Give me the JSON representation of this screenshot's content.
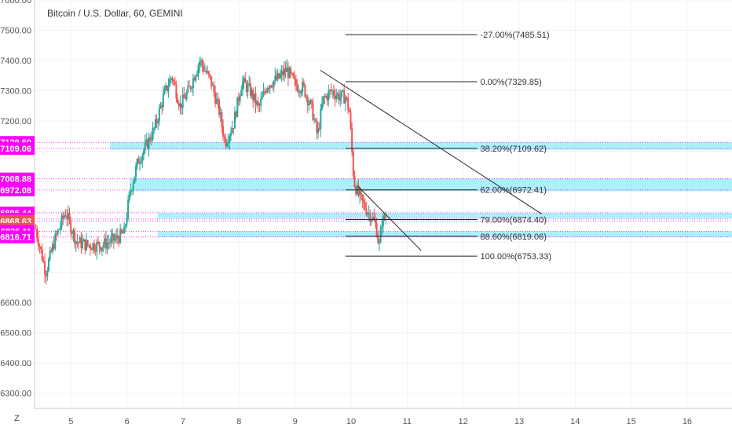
{
  "title": "Bitcoin / U.S. Dollar, 60, GEMINI",
  "corner_label": "Z",
  "colors": {
    "up": "#26a69a",
    "down": "#ef5350",
    "zone": "#88eafa",
    "tag_magenta": "#ff00ff",
    "tag_red": "#ef5350",
    "line": "#222222"
  },
  "chart_data": {
    "type": "candlestick",
    "ylim": [
      6250,
      7600
    ],
    "xlim": [
      4.35,
      16.8
    ],
    "y_ticks": [
      7600,
      7500,
      7400,
      7300,
      7200,
      7100,
      7000,
      6900,
      6800,
      6700,
      6600,
      6500,
      6400,
      6300
    ],
    "y_tick_labels": [
      "7600.00",
      "7500.00",
      "7400.00",
      "7300.00",
      "7200.00",
      "",
      "",
      "",
      "",
      "",
      "6600.00",
      "6500.00",
      "6400.00",
      "6300.00"
    ],
    "x_ticks": [
      5,
      6,
      7,
      8,
      9,
      10,
      11,
      12,
      13,
      14,
      15,
      16
    ],
    "x_tick_labels": [
      "5",
      "6",
      "7",
      "8",
      "9",
      "10",
      "11",
      "12",
      "13",
      "14",
      "15",
      "16"
    ],
    "price_tags": [
      {
        "value": 7129.5,
        "label": "7129.50",
        "color": "magenta"
      },
      {
        "value": 7109.06,
        "label": "7109.06",
        "color": "magenta"
      },
      {
        "value": 7008.88,
        "label": "7008.88",
        "color": "magenta"
      },
      {
        "value": 6972.08,
        "label": "6972.08",
        "color": "magenta"
      },
      {
        "value": 6896.44,
        "label": "6896.44",
        "color": "magenta"
      },
      {
        "value": 6876.0,
        "label": "6876.00",
        "color": "magenta"
      },
      {
        "value": 6868.63,
        "label": "6868.63",
        "color": "red"
      },
      {
        "value": 6842.0,
        "label": "39:32",
        "color": "red"
      },
      {
        "value": 6835.11,
        "label": "6835.11",
        "color": "magenta"
      },
      {
        "value": 6816.71,
        "label": "6816.71",
        "color": "magenta"
      }
    ],
    "fib_levels": [
      {
        "value": 7485.51,
        "label": "-27.00%(7485.51)"
      },
      {
        "value": 7329.85,
        "label": "0.00%(7329.85)"
      },
      {
        "value": 7109.62,
        "label": "38.20%(7109.62)"
      },
      {
        "value": 6972.41,
        "label": "62.00%(6972.41)"
      },
      {
        "value": 6874.4,
        "label": "79.00%(6874.40)"
      },
      {
        "value": 6819.06,
        "label": "88.60%(6819.06)"
      },
      {
        "value": 6753.33,
        "label": "100.00%(6753.33)"
      }
    ],
    "fib_x_range": [
      9.9,
      12.25
    ],
    "zones": [
      {
        "x0": 5.7,
        "y0": 7105,
        "y1": 7130
      },
      {
        "x0": 6.05,
        "y0": 6968,
        "y1": 7010
      },
      {
        "x0": 6.55,
        "y0": 6878,
        "y1": 6896
      },
      {
        "x0": 6.55,
        "y0": 6816,
        "y1": 6836
      }
    ],
    "dotted_levels": [
      7129.5,
      7109.06,
      7008.88,
      6972.08,
      6896.44,
      6876.0,
      6868.63,
      6835.11,
      6816.71
    ],
    "trendlines": [
      {
        "x0": 9.45,
        "y0": 7368,
        "x1": 13.4,
        "y1": 6893
      },
      {
        "x0": 10.12,
        "y0": 6985,
        "x1": 11.25,
        "y1": 6772
      }
    ],
    "candle_path": [
      [
        4.35,
        6860
      ],
      [
        4.55,
        6700
      ],
      [
        4.7,
        6800
      ],
      [
        4.9,
        6900
      ],
      [
        5.1,
        6800
      ],
      [
        5.3,
        6790
      ],
      [
        5.55,
        6790
      ],
      [
        5.8,
        6810
      ],
      [
        5.95,
        6830
      ],
      [
        6.05,
        6960
      ],
      [
        6.2,
        7070
      ],
      [
        6.35,
        7120
      ],
      [
        6.5,
        7180
      ],
      [
        6.65,
        7280
      ],
      [
        6.8,
        7350
      ],
      [
        6.95,
        7250
      ],
      [
        7.1,
        7300
      ],
      [
        7.3,
        7400
      ],
      [
        7.5,
        7330
      ],
      [
        7.65,
        7230
      ],
      [
        7.75,
        7130
      ],
      [
        7.9,
        7190
      ],
      [
        8.05,
        7330
      ],
      [
        8.2,
        7300
      ],
      [
        8.35,
        7240
      ],
      [
        8.5,
        7320
      ],
      [
        8.7,
        7340
      ],
      [
        8.85,
        7370
      ],
      [
        9.0,
        7320
      ],
      [
        9.15,
        7310
      ],
      [
        9.3,
        7240
      ],
      [
        9.4,
        7150
      ],
      [
        9.5,
        7270
      ],
      [
        9.65,
        7300
      ],
      [
        9.8,
        7280
      ],
      [
        9.9,
        7280
      ],
      [
        9.97,
        7230
      ],
      [
        10.05,
        7000
      ],
      [
        10.12,
        6960
      ],
      [
        10.2,
        6930
      ],
      [
        10.3,
        6900
      ],
      [
        10.38,
        6880
      ],
      [
        10.45,
        6850
      ],
      [
        10.5,
        6780
      ],
      [
        10.55,
        6870
      ],
      [
        10.62,
        6880
      ]
    ]
  }
}
